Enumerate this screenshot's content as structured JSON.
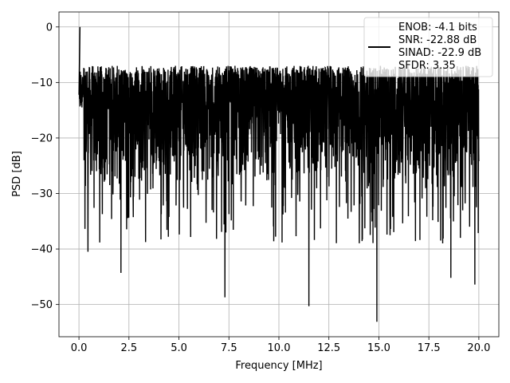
{
  "chart_data": {
    "type": "line",
    "title": "",
    "xlabel": "Frequency [MHz]",
    "ylabel": "PSD [dB]",
    "xlim": [
      -1.0,
      21.0
    ],
    "ylim": [
      -55.8,
      2.7
    ],
    "xticks": [
      0.0,
      2.5,
      5.0,
      7.5,
      10.0,
      12.5,
      15.0,
      17.5,
      20.0
    ],
    "xtick_labels": [
      "0.0",
      "2.5",
      "5.0",
      "7.5",
      "10.0",
      "12.5",
      "15.0",
      "17.5",
      "20.0"
    ],
    "yticks": [
      0,
      -10,
      -20,
      -30,
      -40,
      -50
    ],
    "ytick_labels": [
      "0",
      "−10",
      "−20",
      "−30",
      "−40",
      "−50"
    ],
    "grid": true,
    "legend_position": "upper right",
    "series": [
      {
        "name": "ENOB: -4.1 bits\nSNR: -22.88 dB\nSINAD: -22.9 dB\nSFDR: 3.35",
        "legend_lines": [
          "ENOB: -4.1 bits",
          "SNR: -22.88 dB",
          "SINAD: -22.9 dB",
          "SFDR: 3.35"
        ],
        "color": "#000000",
        "x_range": [
          0.0,
          20.0
        ],
        "peak": {
          "x": 0.05,
          "y": 0.0
        },
        "typical_band": [
          -30,
          -7
        ],
        "notable_minima": [
          {
            "x": 0.45,
            "y": -40.5
          },
          {
            "x": 2.1,
            "y": -44.3
          },
          {
            "x": 7.3,
            "y": -48.7
          },
          {
            "x": 11.5,
            "y": -50.3
          },
          {
            "x": 14.9,
            "y": -53.1
          },
          {
            "x": 18.6,
            "y": -45.2
          },
          {
            "x": 19.8,
            "y": -46.4
          }
        ]
      }
    ]
  }
}
